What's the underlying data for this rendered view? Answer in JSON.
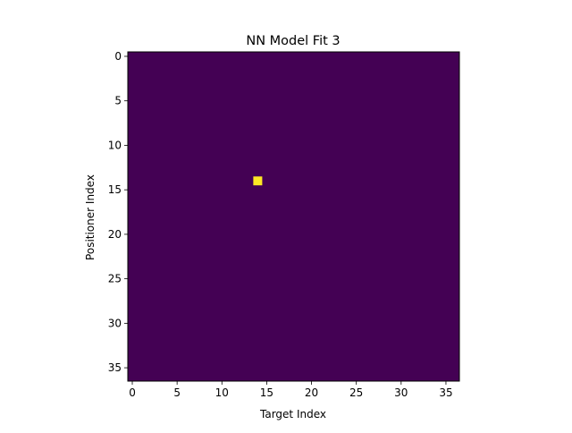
{
  "chart_data": {
    "type": "heatmap",
    "title": "NN Model Fit 3",
    "xlabel": "Target Index",
    "ylabel": "Positioner Index",
    "rows": 37,
    "cols": 37,
    "x_ticks": [
      0,
      5,
      10,
      15,
      20,
      25,
      30,
      35
    ],
    "y_ticks": [
      0,
      5,
      10,
      15,
      20,
      25,
      30,
      35
    ],
    "xlim": [
      -0.5,
      36.5
    ],
    "ylim": [
      36.5,
      -0.5
    ],
    "background_value": 0,
    "hot_cells": [
      {
        "row": 14,
        "col": 14,
        "value": 1
      }
    ],
    "colormap": "viridis",
    "colors": {
      "low": "#440154",
      "high": "#fde725"
    },
    "grid": false,
    "legend": "none"
  }
}
